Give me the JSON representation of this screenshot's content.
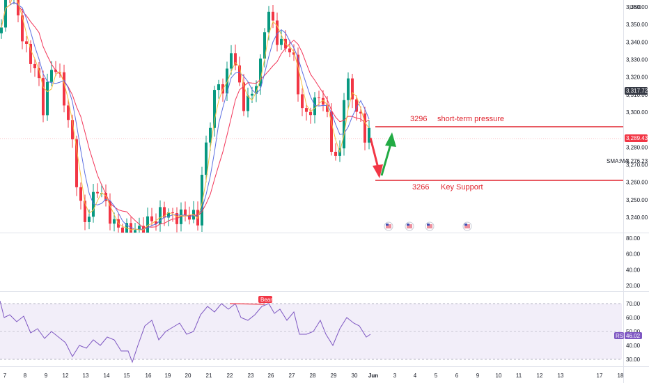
{
  "currency": "USD",
  "price_axis": [
    "3,360.00",
    "3,350.00",
    "3,340.00",
    "3,330.00",
    "3,320.00",
    "3,310.00",
    "3,300.00",
    "3,280.00",
    "3,270.00",
    "3,260.00",
    "3,250.00",
    "3,240.00"
  ],
  "price_axis_values": [
    3360,
    3350,
    3340,
    3330,
    3320,
    3310,
    3300,
    3280,
    3270,
    3260,
    3250,
    3240
  ],
  "last_price": {
    "label": "3,317.72",
    "value": 3317.72
  },
  "current_price": {
    "label": "3,289.43",
    "value": 3289.43
  },
  "sma": {
    "value_label": "3,276.23",
    "tag": "SMA:MA",
    "value": 3276.23
  },
  "annotations": {
    "resistance_value": "3296",
    "resistance_text": "short-term pressure",
    "support_value": "3266",
    "support_text": "Key Support"
  },
  "levels": {
    "resistance": 3296,
    "support": 3266
  },
  "osc_axis": [
    "80.00",
    "60.00",
    "40.00",
    "20.00"
  ],
  "osc_axis_values": [
    80,
    60,
    40,
    20
  ],
  "rsi_axis": [
    "70.00",
    "60.00",
    "50.00",
    "40.00",
    "30.00"
  ],
  "rsi_axis_values": [
    70,
    60,
    50,
    40,
    30
  ],
  "rsi": {
    "tag": "RSI",
    "value_label": "46.02",
    "value": 46.02
  },
  "signal_label": "Bear",
  "x_axis": [
    "7",
    "8",
    "9",
    "12",
    "13",
    "14",
    "15",
    "16",
    "19",
    "20",
    "21",
    "22",
    "23",
    "26",
    "27",
    "28",
    "29",
    "30",
    "Jun",
    "3",
    "4",
    "5",
    "6",
    "9",
    "10",
    "11",
    "12",
    "13",
    "17",
    "18"
  ],
  "event_flags": [
    "us-flag-icon",
    "us-flag-icon",
    "us-flag-icon",
    "us-flag-icon"
  ],
  "colors": {
    "up": "#089981",
    "down": "#f23645",
    "ma_fast": "#f5c242",
    "ma_mid": "#5b6ee1",
    "ma_slow": "#f23659",
    "rsi_line": "#7e57c2",
    "rsi_band": "#ede7f6",
    "annotation": "#e0242e",
    "arrow_down": "#f23645",
    "arrow_up": "#22ab44"
  }
}
